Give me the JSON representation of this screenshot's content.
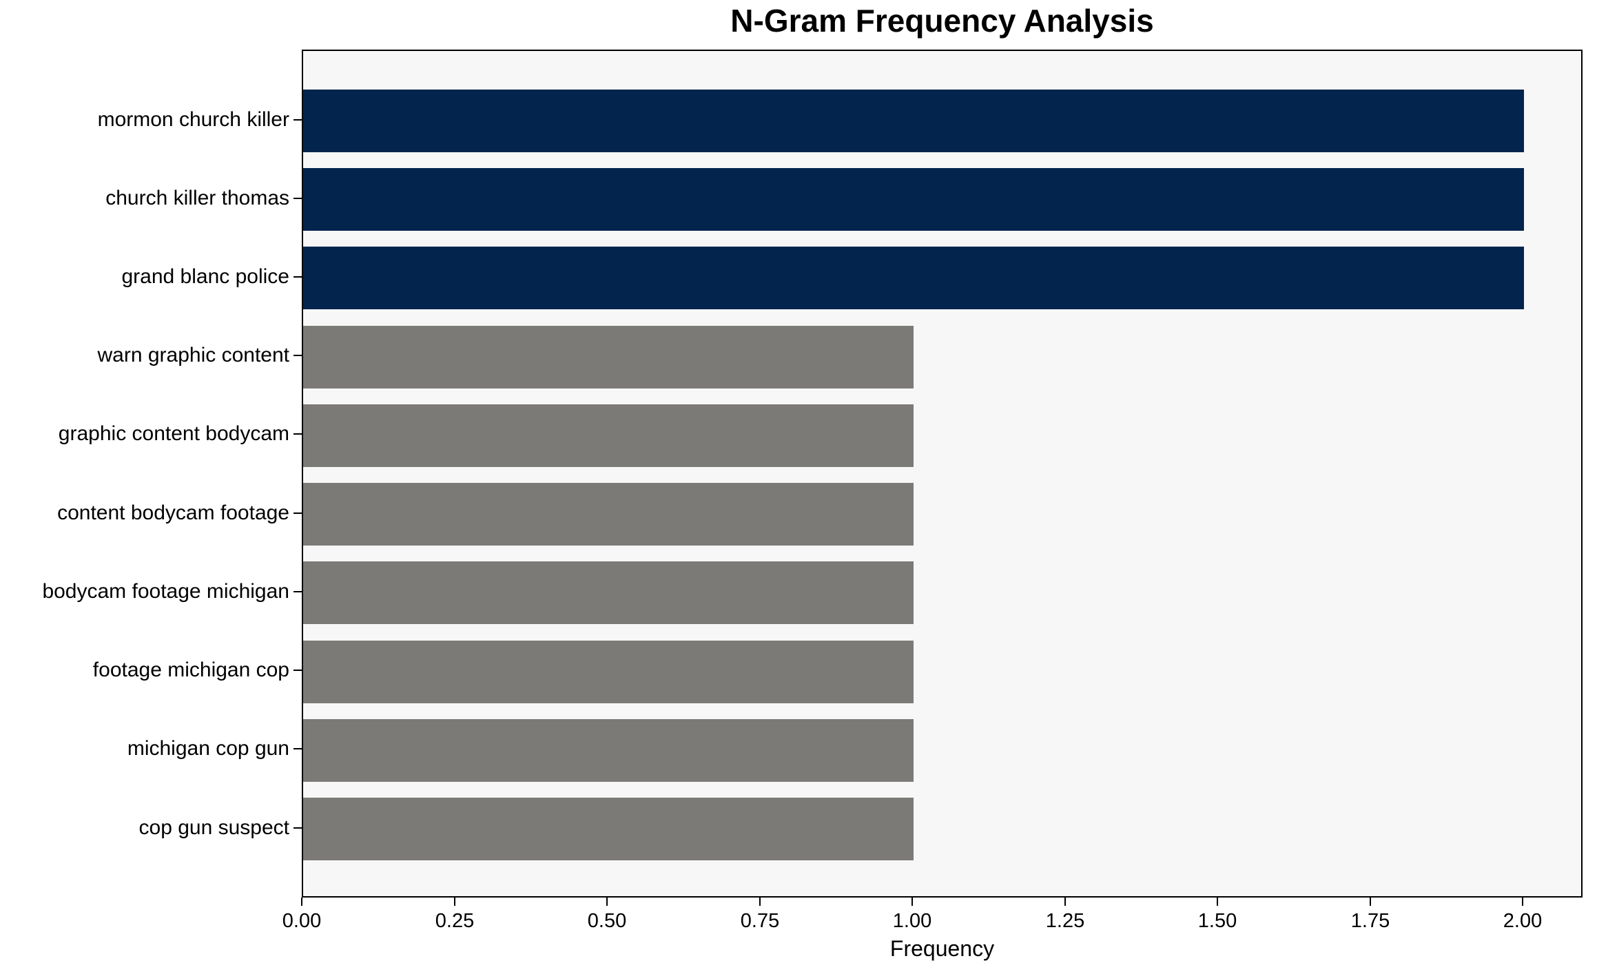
{
  "title": "N-Gram Frequency Analysis",
  "chart_data": {
    "type": "bar",
    "orientation": "horizontal",
    "title": "N-Gram Frequency Analysis",
    "xlabel": "Frequency",
    "ylabel": "",
    "categories": [
      "mormon church killer",
      "church killer thomas",
      "grand blanc police",
      "warn graphic content",
      "graphic content bodycam",
      "content bodycam footage",
      "bodycam footage michigan",
      "footage michigan cop",
      "michigan cop gun",
      "cop gun suspect"
    ],
    "values": [
      2,
      2,
      2,
      1,
      1,
      1,
      1,
      1,
      1,
      1
    ],
    "bar_colors": [
      "#02244d",
      "#02244d",
      "#02244d",
      "#7b7a77",
      "#7b7a77",
      "#7b7a77",
      "#7b7a77",
      "#7b7a77",
      "#7b7a77",
      "#7b7a77"
    ],
    "xlim": [
      0,
      2.098
    ],
    "xticks": [
      {
        "value": 0.0,
        "label": "0.00"
      },
      {
        "value": 0.25,
        "label": "0.25"
      },
      {
        "value": 0.5,
        "label": "0.50"
      },
      {
        "value": 0.75,
        "label": "0.75"
      },
      {
        "value": 1.0,
        "label": "1.00"
      },
      {
        "value": 1.25,
        "label": "1.25"
      },
      {
        "value": 1.5,
        "label": "1.50"
      },
      {
        "value": 1.75,
        "label": "1.75"
      },
      {
        "value": 2.0,
        "label": "2.00"
      }
    ],
    "grid": false,
    "legend": null,
    "colors": {
      "highlight_bar": "#02244d",
      "default_bar": "#7b7a77",
      "plot_background": "#f7f7f7",
      "figure_background": "#ffffff",
      "text": "#000000"
    }
  }
}
